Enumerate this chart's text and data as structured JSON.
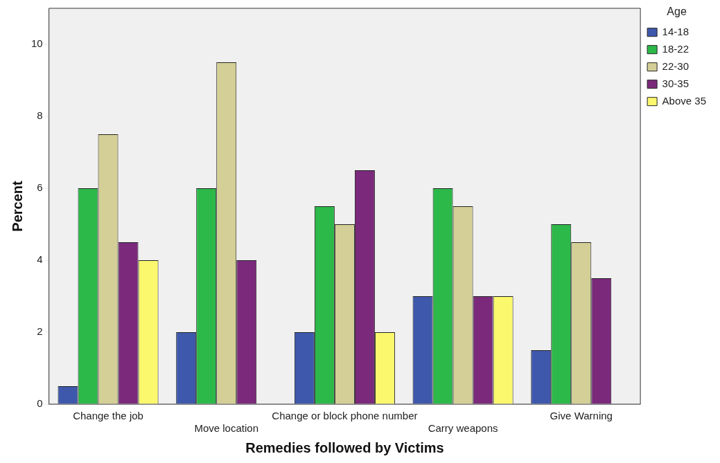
{
  "chart_data": {
    "type": "bar",
    "xlabel": "Remedies followed by Victims",
    "ylabel": "Percent",
    "legend_title": "Age",
    "legend": "right",
    "categories": [
      "Change the job",
      "Move location",
      "Change or block phone number",
      "Carry weapons",
      "Give Warning"
    ],
    "series": [
      {
        "name": "14-18",
        "color": "#3e58ac",
        "values": [
          0.5,
          2,
          2,
          3,
          1.5
        ]
      },
      {
        "name": "18-22",
        "color": "#2db84a",
        "values": [
          6,
          6,
          5.5,
          6,
          5
        ]
      },
      {
        "name": "22-30",
        "color": "#d4cf96",
        "values": [
          7.5,
          9.5,
          5,
          5.5,
          4.5
        ]
      },
      {
        "name": "30-35",
        "color": "#7b2a7b",
        "values": [
          4.5,
          4,
          6.5,
          3,
          3.5
        ]
      },
      {
        "name": "Above 35",
        "color": "#fbf86d",
        "values": [
          4,
          0,
          2,
          3,
          0
        ]
      }
    ],
    "ylim": [
      0,
      11
    ],
    "yticks": [
      0,
      2,
      4,
      6,
      8,
      10
    ],
    "grid": false
  }
}
